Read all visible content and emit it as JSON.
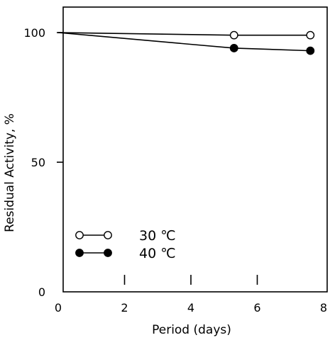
{
  "chart_data": {
    "type": "line",
    "xlabel": "Period (days)",
    "ylabel": "Residual Activity, %",
    "xlim": [
      0,
      8
    ],
    "ylim": [
      0,
      100
    ],
    "x_ticks": [
      0,
      2,
      4,
      6,
      8
    ],
    "y_ticks": [
      0,
      50,
      100
    ],
    "grid": false,
    "legend_position": "bottom-left",
    "series": [
      {
        "name": "30 ℃",
        "marker": "open-circle",
        "color": "#000000",
        "points": [
          {
            "x": 0,
            "y": 100
          },
          {
            "x": 5.3,
            "y": 99
          },
          {
            "x": 7.6,
            "y": 99
          }
        ]
      },
      {
        "name": "40 ℃",
        "marker": "filled-circle",
        "color": "#000000",
        "points": [
          {
            "x": 0,
            "y": 100
          },
          {
            "x": 5.3,
            "y": 94
          },
          {
            "x": 7.6,
            "y": 93
          }
        ]
      }
    ]
  }
}
